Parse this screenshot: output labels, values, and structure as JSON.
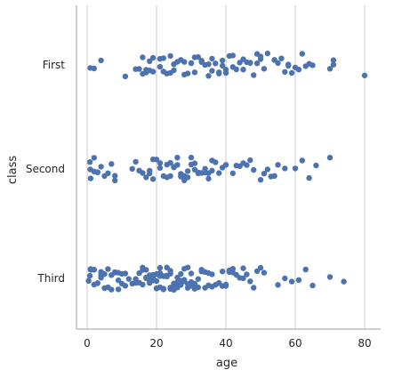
{
  "chart_data": {
    "type": "scatter",
    "title": "",
    "xlabel": "age",
    "ylabel": "class",
    "xlim": [
      -4,
      84
    ],
    "categories": [
      "First",
      "Second",
      "Third"
    ],
    "xticks": [
      0,
      20,
      40,
      60,
      80
    ],
    "grid": "vertical",
    "point_color": "#4c72b0",
    "series": [
      {
        "category": "First",
        "values": [
          2,
          4,
          0.9,
          11,
          14,
          15,
          16,
          16,
          17,
          17,
          18,
          18,
          19,
          19,
          21,
          21,
          22,
          22,
          23,
          24,
          24,
          25,
          25,
          26,
          27,
          28,
          28,
          29,
          30,
          30,
          31,
          31,
          32,
          33,
          33,
          34,
          35,
          35,
          36,
          36,
          37,
          38,
          38,
          39,
          39,
          40,
          40,
          41,
          42,
          42,
          43,
          44,
          45,
          45,
          46,
          47,
          47,
          48,
          49,
          49,
          50,
          50,
          51,
          52,
          54,
          54,
          55,
          56,
          57,
          58,
          58,
          59,
          60,
          61,
          62,
          63,
          64,
          65,
          70,
          71,
          71,
          80
        ]
      },
      {
        "category": "Second",
        "values": [
          0.8,
          0.9,
          1,
          2,
          2,
          3,
          3,
          4,
          5,
          6,
          7,
          8,
          8,
          13,
          14,
          15,
          16,
          17,
          18,
          18,
          19,
          19,
          20,
          21,
          21,
          22,
          23,
          23,
          24,
          24,
          25,
          25,
          26,
          26,
          27,
          27,
          28,
          28,
          29,
          29,
          30,
          30,
          31,
          31,
          32,
          32,
          33,
          34,
          34,
          35,
          35,
          36,
          36,
          37,
          38,
          39,
          40,
          42,
          43,
          44,
          45,
          46,
          47,
          48,
          50,
          51,
          52,
          53,
          54,
          55,
          57,
          60,
          62,
          64,
          66,
          70
        ]
      },
      {
        "category": "Third",
        "values": [
          0.4,
          0.8,
          1,
          1,
          2,
          2,
          2,
          3,
          3,
          4,
          4,
          4,
          5,
          5,
          6,
          6,
          7,
          7,
          8,
          8,
          9,
          9,
          9,
          10,
          10,
          11,
          11,
          12,
          13,
          14,
          14,
          15,
          15,
          16,
          16,
          16,
          17,
          17,
          17,
          18,
          18,
          18,
          18,
          19,
          19,
          19,
          19,
          20,
          20,
          20,
          20,
          21,
          21,
          21,
          21,
          22,
          22,
          22,
          22,
          23,
          23,
          23,
          24,
          24,
          24,
          24,
          25,
          25,
          25,
          26,
          26,
          26,
          27,
          27,
          27,
          28,
          28,
          28,
          29,
          29,
          29,
          30,
          30,
          30,
          31,
          31,
          32,
          32,
          33,
          33,
          34,
          34,
          35,
          35,
          36,
          36,
          37,
          38,
          38,
          39,
          39,
          40,
          40,
          41,
          41,
          42,
          42,
          43,
          44,
          45,
          45,
          46,
          47,
          48,
          49,
          50,
          51,
          55,
          57,
          59,
          61,
          63,
          65,
          70,
          74
        ]
      }
    ]
  }
}
